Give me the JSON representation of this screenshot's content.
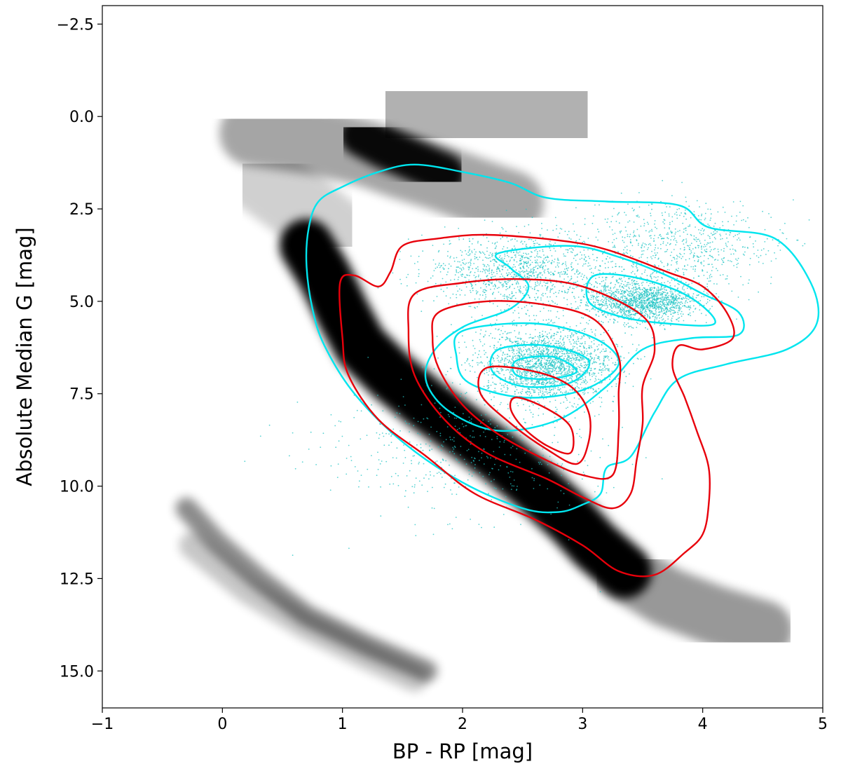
{
  "chart_data": {
    "type": "scatter",
    "title": "",
    "xlabel": "BP - RP [mag]",
    "ylabel": "Absolute Median G [mag]",
    "xlim": [
      -1,
      5
    ],
    "ylim": [
      16.0,
      -3.0
    ],
    "y_inverted": true,
    "grid": false,
    "legend": "none",
    "xticks": [
      -1,
      0,
      1,
      2,
      3,
      4,
      5
    ],
    "xtick_labels": [
      "−1",
      "0",
      "1",
      "2",
      "3",
      "4",
      "5"
    ],
    "yticks": [
      -2.5,
      0.0,
      2.5,
      5.0,
      7.5,
      10.0,
      12.5,
      15.0
    ],
    "ytick_labels": [
      "−2.5",
      "0.0",
      "2.5",
      "5.0",
      "7.5",
      "10.0",
      "12.5",
      "15.0"
    ],
    "colors": {
      "background_density": "#000000",
      "sample_points": "#20c4c4",
      "cyan_contours": "#00e5ee",
      "red_contours": "#e8000b"
    },
    "background_density": {
      "features": [
        {
          "points": [
            [
              0.25,
              0.45
            ],
            [
              0.8,
              0.7
            ],
            [
              1.2,
              1.0
            ],
            [
              1.5,
              1.35
            ],
            [
              1.8,
              1.65
            ],
            [
              2.1,
              2.0
            ],
            [
              2.4,
              2.35
            ]
          ],
          "width": 0.55,
          "opacity": 0.35
        },
        {
          "points": [
            [
              1.15,
              0.5
            ],
            [
              1.35,
              0.85
            ],
            [
              1.6,
              1.2
            ],
            [
              1.85,
              1.55
            ]
          ],
          "width": 0.35,
          "opacity": 0.95
        },
        {
          "points": [
            [
              1.6,
              -0.45
            ],
            [
              2.0,
              -0.5
            ],
            [
              2.4,
              -0.2
            ],
            [
              2.8,
              0.4
            ]
          ],
          "width": 1.1,
          "opacity": 0.3
        },
        {
          "points": [
            [
              0.7,
              3.5
            ],
            [
              0.85,
              4.3
            ],
            [
              1.0,
              5.3
            ],
            [
              1.15,
              6.2
            ],
            [
              1.4,
              7.0
            ],
            [
              1.7,
              7.8
            ],
            [
              2.0,
              8.5
            ],
            [
              2.3,
              9.2
            ],
            [
              2.6,
              10.0
            ],
            [
              2.9,
              10.9
            ],
            [
              3.1,
              11.6
            ],
            [
              3.35,
              12.3
            ]
          ],
          "width": 0.45,
          "opacity": 1.0
        },
        {
          "points": [
            [
              3.35,
              12.3
            ],
            [
              3.7,
              13.0
            ],
            [
              4.1,
              13.5
            ],
            [
              4.5,
              13.9
            ]
          ],
          "width": 0.5,
          "opacity": 0.4
        },
        {
          "points": [
            [
              0.3,
              1.6
            ],
            [
              0.55,
              2.2
            ],
            [
              0.8,
              2.8
            ],
            [
              0.95,
              3.2
            ]
          ],
          "width": 0.6,
          "opacity": 0.18
        },
        {
          "points": [
            [
              -0.3,
              10.6
            ],
            [
              -0.05,
              11.5
            ],
            [
              0.3,
              12.5
            ],
            [
              0.7,
              13.5
            ],
            [
              1.2,
              14.3
            ],
            [
              1.7,
              15.0
            ]
          ],
          "width": 0.18,
          "opacity": 0.45
        },
        {
          "points": [
            [
              -0.25,
              11.6
            ],
            [
              0.2,
              12.8
            ],
            [
              0.7,
              13.8
            ],
            [
              1.2,
              14.6
            ],
            [
              1.6,
              15.2
            ]
          ],
          "width": 0.22,
          "opacity": 0.22
        }
      ]
    },
    "sample_density": {
      "clusters": [
        {
          "center": [
            2.7,
            6.7
          ],
          "spread": [
            0.55,
            1.0
          ],
          "weight": 0.35
        },
        {
          "center": [
            3.5,
            5.0
          ],
          "spread": [
            0.45,
            0.55
          ],
          "weight": 0.25
        },
        {
          "center": [
            2.5,
            4.2
          ],
          "spread": [
            0.8,
            1.0
          ],
          "weight": 0.2
        },
        {
          "center": [
            3.8,
            3.5
          ],
          "spread": [
            0.8,
            1.2
          ],
          "weight": 0.12
        },
        {
          "center": [
            2.0,
            9.0
          ],
          "spread": [
            1.2,
            1.8
          ],
          "weight": 0.08
        }
      ],
      "count": 6000
    },
    "series": [
      {
        "kind": "contour",
        "color": "cyan",
        "level": 1,
        "points": [
          [
            1.6,
            1.3
          ],
          [
            2.0,
            1.5
          ],
          [
            2.4,
            1.8
          ],
          [
            2.7,
            2.2
          ],
          [
            3.2,
            2.3
          ],
          [
            3.8,
            2.4
          ],
          [
            4.05,
            3.0
          ],
          [
            4.6,
            3.3
          ],
          [
            4.9,
            4.5
          ],
          [
            4.95,
            5.6
          ],
          [
            4.7,
            6.3
          ],
          [
            4.2,
            6.7
          ],
          [
            3.8,
            7.1
          ],
          [
            3.6,
            8.0
          ],
          [
            3.4,
            9.2
          ],
          [
            3.2,
            9.5
          ],
          [
            3.15,
            10.2
          ],
          [
            3.0,
            10.5
          ],
          [
            2.8,
            10.7
          ],
          [
            2.5,
            10.6
          ],
          [
            2.0,
            9.9
          ],
          [
            1.5,
            8.8
          ],
          [
            1.1,
            7.5
          ],
          [
            0.85,
            6.2
          ],
          [
            0.75,
            5.2
          ],
          [
            0.7,
            4.0
          ],
          [
            0.72,
            3.0
          ],
          [
            0.8,
            2.3
          ],
          [
            1.0,
            1.9
          ],
          [
            1.3,
            1.5
          ]
        ]
      },
      {
        "kind": "contour",
        "color": "cyan",
        "level": 2,
        "points": [
          [
            2.3,
            3.7
          ],
          [
            2.9,
            3.5
          ],
          [
            3.3,
            3.8
          ],
          [
            3.7,
            4.3
          ],
          [
            4.0,
            4.8
          ],
          [
            4.3,
            5.3
          ],
          [
            4.3,
            5.9
          ],
          [
            3.9,
            6.0
          ],
          [
            3.5,
            6.3
          ],
          [
            3.2,
            7.3
          ],
          [
            2.8,
            8.2
          ],
          [
            2.3,
            8.5
          ],
          [
            1.9,
            8.0
          ],
          [
            1.7,
            7.2
          ],
          [
            1.75,
            6.4
          ],
          [
            2.0,
            5.7
          ],
          [
            2.4,
            5.2
          ],
          [
            2.55,
            4.6
          ],
          [
            2.4,
            4.1
          ]
        ]
      },
      {
        "kind": "contour",
        "color": "cyan",
        "level": 3,
        "points": [
          [
            3.1,
            4.3
          ],
          [
            3.5,
            4.4
          ],
          [
            3.9,
            4.9
          ],
          [
            4.1,
            5.6
          ],
          [
            3.7,
            5.6
          ],
          [
            3.3,
            5.4
          ],
          [
            3.05,
            5.0
          ]
        ]
      },
      {
        "kind": "contour",
        "color": "cyan",
        "level": 4,
        "points": [
          [
            2.0,
            5.8
          ],
          [
            2.6,
            5.6
          ],
          [
            3.1,
            6.0
          ],
          [
            3.3,
            6.7
          ],
          [
            3.0,
            7.4
          ],
          [
            2.5,
            7.6
          ],
          [
            2.05,
            7.2
          ],
          [
            1.95,
            6.5
          ]
        ]
      },
      {
        "kind": "contour",
        "color": "cyan",
        "level": 5,
        "points": [
          [
            2.3,
            6.3
          ],
          [
            2.7,
            6.2
          ],
          [
            3.05,
            6.6
          ],
          [
            2.9,
            7.2
          ],
          [
            2.5,
            7.3
          ],
          [
            2.25,
            6.9
          ]
        ]
      },
      {
        "kind": "contour",
        "color": "cyan",
        "level": 6,
        "points": [
          [
            2.45,
            6.6
          ],
          [
            2.75,
            6.5
          ],
          [
            2.95,
            6.9
          ],
          [
            2.7,
            7.1
          ],
          [
            2.45,
            7.0
          ]
        ]
      },
      {
        "kind": "contour",
        "color": "red",
        "level": 1,
        "points": [
          [
            1.4,
            4.2
          ],
          [
            1.5,
            3.5
          ],
          [
            1.8,
            3.3
          ],
          [
            2.2,
            3.2
          ],
          [
            2.8,
            3.35
          ],
          [
            3.2,
            3.6
          ],
          [
            3.7,
            4.2
          ],
          [
            4.0,
            4.6
          ],
          [
            4.2,
            5.3
          ],
          [
            4.25,
            6.0
          ],
          [
            4.0,
            6.3
          ],
          [
            3.8,
            6.2
          ],
          [
            3.75,
            6.8
          ],
          [
            3.85,
            7.6
          ],
          [
            3.95,
            8.5
          ],
          [
            4.05,
            9.5
          ],
          [
            4.05,
            10.5
          ],
          [
            4.0,
            11.3
          ],
          [
            3.85,
            11.8
          ],
          [
            3.6,
            12.4
          ],
          [
            3.3,
            12.3
          ],
          [
            3.0,
            11.6
          ],
          [
            2.6,
            10.9
          ],
          [
            2.1,
            10.2
          ],
          [
            1.7,
            9.2
          ],
          [
            1.3,
            8.2
          ],
          [
            1.05,
            7.0
          ],
          [
            1.0,
            6.0
          ],
          [
            0.98,
            4.5
          ],
          [
            1.1,
            4.3
          ],
          [
            1.3,
            4.6
          ]
        ]
      },
      {
        "kind": "contour",
        "color": "red",
        "level": 2,
        "points": [
          [
            1.6,
            4.8
          ],
          [
            2.0,
            4.5
          ],
          [
            2.5,
            4.4
          ],
          [
            3.0,
            4.6
          ],
          [
            3.5,
            5.4
          ],
          [
            3.6,
            6.3
          ],
          [
            3.5,
            7.3
          ],
          [
            3.5,
            8.3
          ],
          [
            3.45,
            9.3
          ],
          [
            3.4,
            10.2
          ],
          [
            3.25,
            10.6
          ],
          [
            3.0,
            10.3
          ],
          [
            2.7,
            9.8
          ],
          [
            2.2,
            9.1
          ],
          [
            1.85,
            8.2
          ],
          [
            1.6,
            7.0
          ],
          [
            1.55,
            5.8
          ]
        ]
      },
      {
        "kind": "contour",
        "color": "red",
        "level": 3,
        "points": [
          [
            1.8,
            5.3
          ],
          [
            2.2,
            5.0
          ],
          [
            2.7,
            5.1
          ],
          [
            3.1,
            5.5
          ],
          [
            3.3,
            6.5
          ],
          [
            3.3,
            7.5
          ],
          [
            3.3,
            8.5
          ],
          [
            3.25,
            9.7
          ],
          [
            3.0,
            9.7
          ],
          [
            2.7,
            9.3
          ],
          [
            2.3,
            8.6
          ],
          [
            2.0,
            7.8
          ],
          [
            1.8,
            6.8
          ],
          [
            1.75,
            6.0
          ]
        ]
      },
      {
        "kind": "contour",
        "color": "red",
        "level": 4,
        "points": [
          [
            2.2,
            6.8
          ],
          [
            2.6,
            6.9
          ],
          [
            2.9,
            7.3
          ],
          [
            3.05,
            8.0
          ],
          [
            3.05,
            8.8
          ],
          [
            2.95,
            9.4
          ],
          [
            2.7,
            9.0
          ],
          [
            2.4,
            8.3
          ],
          [
            2.15,
            7.5
          ]
        ]
      },
      {
        "kind": "contour",
        "color": "red",
        "level": 5,
        "points": [
          [
            2.45,
            7.6
          ],
          [
            2.7,
            7.9
          ],
          [
            2.9,
            8.4
          ],
          [
            2.9,
            9.1
          ],
          [
            2.7,
            8.9
          ],
          [
            2.5,
            8.4
          ],
          [
            2.4,
            7.9
          ]
        ]
      }
    ]
  }
}
